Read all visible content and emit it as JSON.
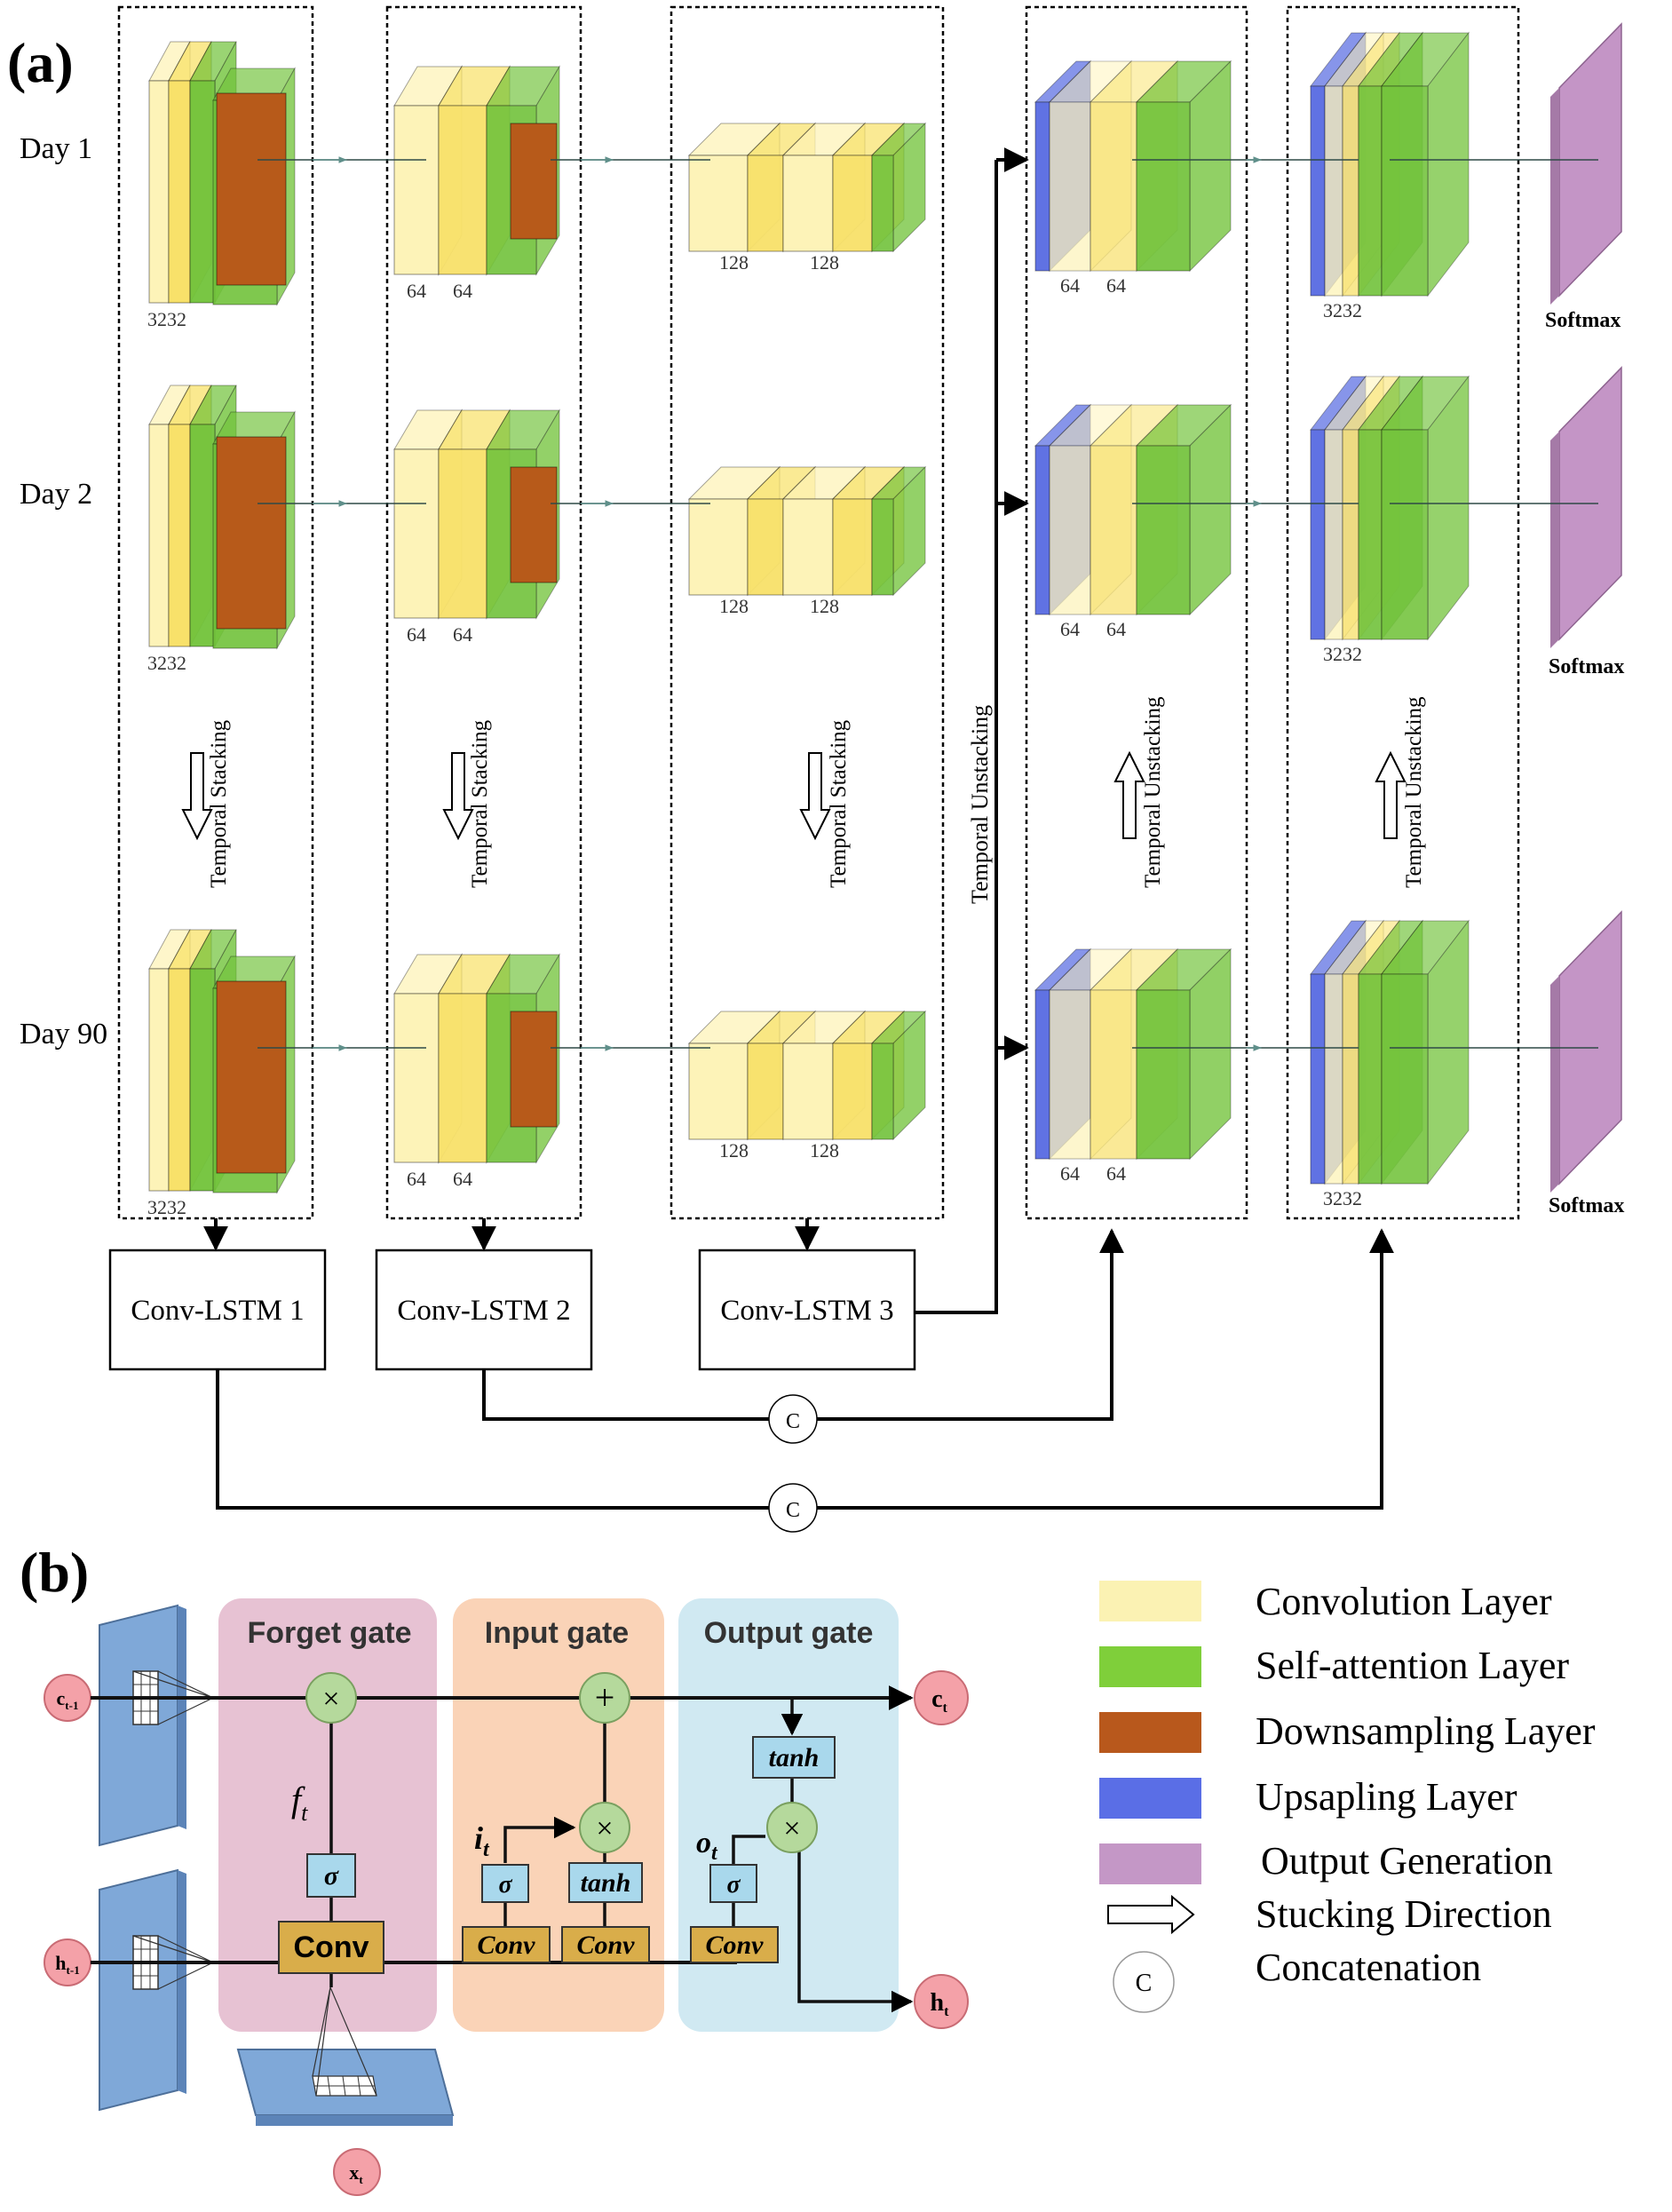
{
  "panel_a": {
    "label": "(a)",
    "rows": [
      {
        "label": "Day 1"
      },
      {
        "label": "Day 2"
      },
      {
        "label": "Day 90"
      }
    ],
    "encoder_columns": [
      {
        "sizes": [
          "3232"
        ],
        "stack_label": "Temporal Stacking",
        "lstm_label": "Conv-LSTM 1"
      },
      {
        "sizes": [
          "64",
          "64"
        ],
        "stack_label": "Temporal Stacking",
        "lstm_label": "Conv-LSTM 2"
      },
      {
        "sizes": [
          "128",
          "128"
        ],
        "stack_label": "Temporal Stacking",
        "lstm_label": "Conv-LSTM 3"
      }
    ],
    "decoder_columns": [
      {
        "sizes": [
          "64",
          "64"
        ],
        "stack_label": "Temporal Unstacking"
      },
      {
        "sizes": [
          "3232"
        ],
        "stack_label": "Temporal Unstacking"
      }
    ],
    "bridge_label": "Temporal Unstacking",
    "output_label": "Softmax",
    "concat_symbol": "C"
  },
  "panel_b": {
    "label": "(b)",
    "gates": {
      "forget": "Forget gate",
      "input": "Input gate",
      "output": "Output gate"
    },
    "ops": {
      "multiply": "×",
      "add": "+",
      "sigma": "σ",
      "tanh": "tanh",
      "conv": "Conv"
    },
    "vars": {
      "c_prev": "c",
      "c_prev_sub": "t-1",
      "h_prev": "h",
      "h_prev_sub": "t-1",
      "c_t": "c",
      "c_t_sub": "t",
      "h_t": "h",
      "h_t_sub": "t",
      "x_t": "x",
      "x_t_sub": "t",
      "f": "f",
      "i": "i",
      "o": "o",
      "t_sub": "t"
    }
  },
  "legend": [
    {
      "label": "Convolution Layer",
      "color": "#fbf0a8"
    },
    {
      "label": "Self-attention Layer",
      "color": "#7fcf3a"
    },
    {
      "label": "Downsampling Layer",
      "color": "#b8581c"
    },
    {
      "label": "Upsapling Layer",
      "color": "#5a6ee6"
    },
    {
      "label": "Output Generation",
      "color": "#c497c6"
    },
    {
      "label": "Stucking Direction",
      "icon": "hollow-arrow-icon"
    },
    {
      "label": "Concatenation",
      "icon": "concat-circle-icon",
      "symbol": "C"
    }
  ],
  "colors": {
    "conv_light": "#fdf3b8",
    "conv_mid": "#f8e16a",
    "attention": "#72c33b",
    "downsample": "#b75a1a",
    "upsample": "#4f63e0",
    "output": "#c495c6",
    "forget_bg": "#e8c3d4",
    "input_bg": "#fad4b8",
    "output_bg": "#cfe9f2",
    "node_green": "#b4d89c",
    "node_pink": "#f4a1a8",
    "op_blue": "#a9d8ec",
    "conv_tan": "#d9ad4a",
    "feature_blue": "#7fa8d8"
  }
}
